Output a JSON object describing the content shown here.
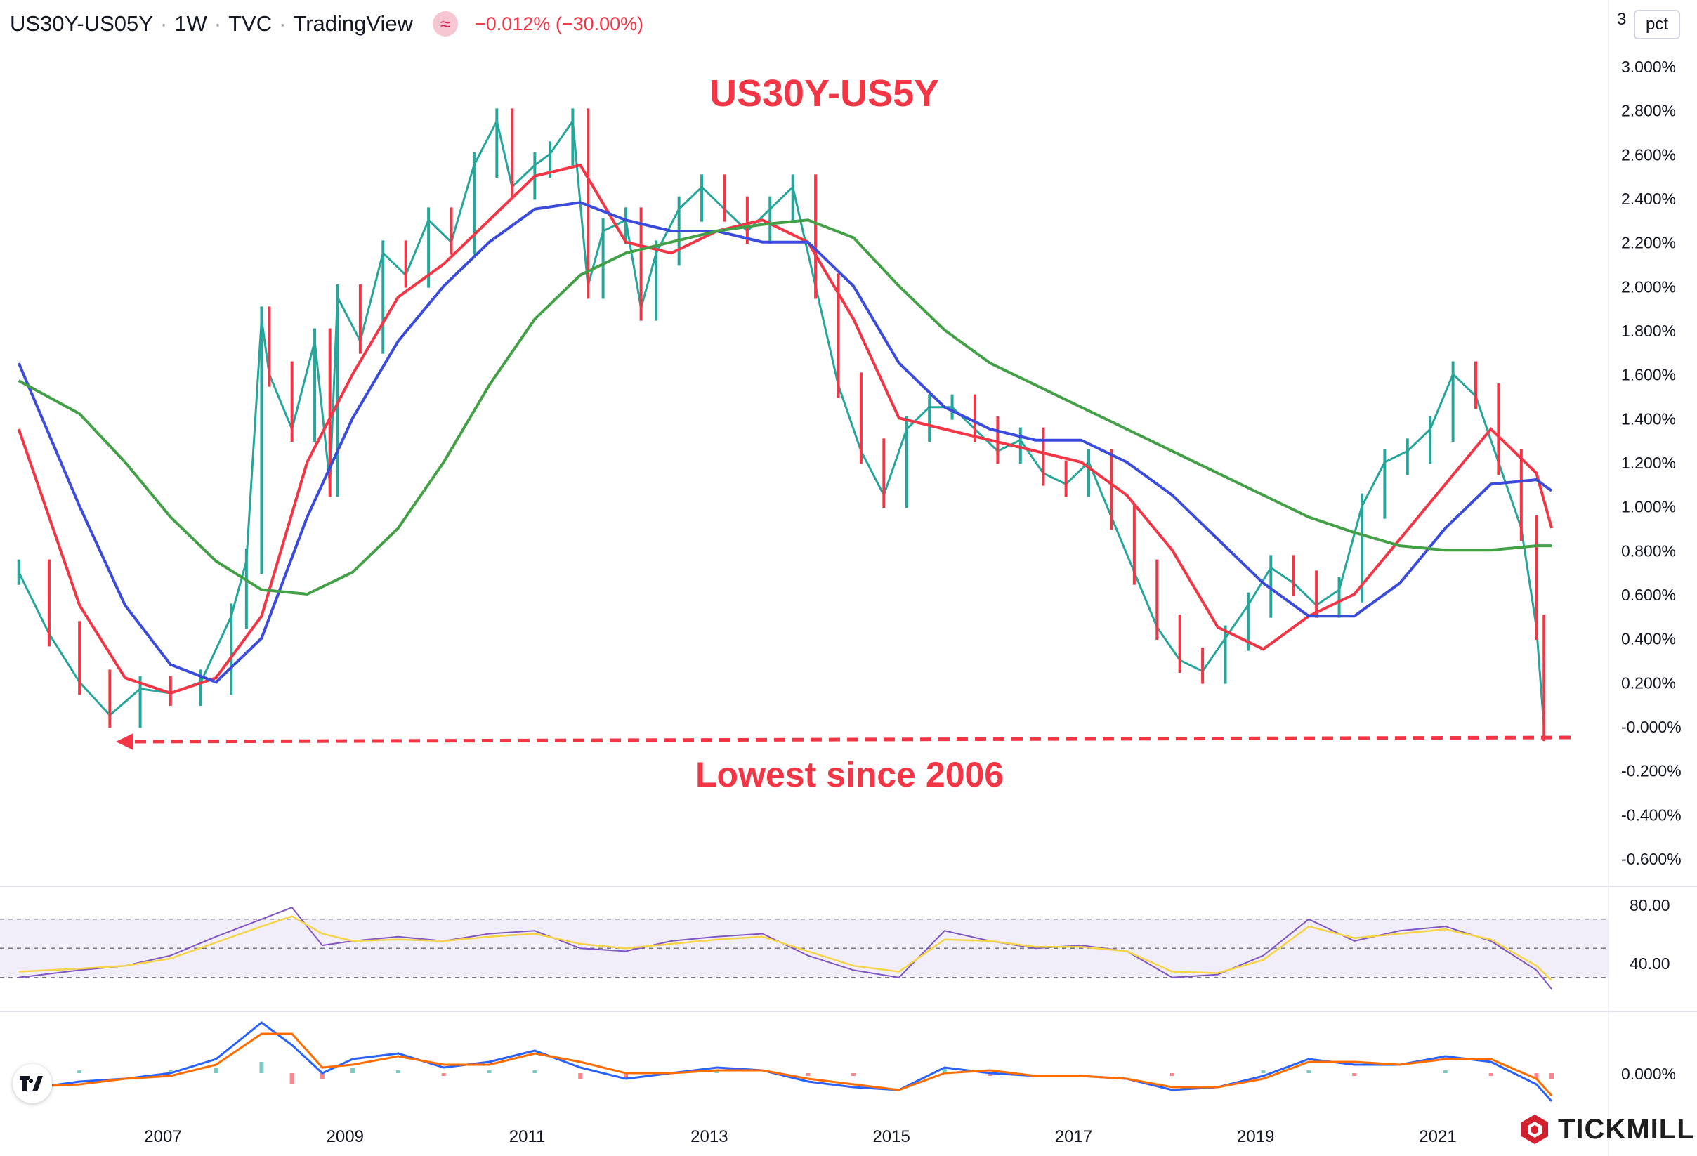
{
  "header": {
    "symbol": "US30Y-US05Y",
    "interval": "1W",
    "exchange": "TVC",
    "source": "TradingView",
    "change": "−0.012% (−30.00%)"
  },
  "price_scale": {
    "top_label": "3",
    "unit_button": "pct"
  },
  "annotations": {
    "title": "US30Y-US5Y",
    "low_note": "Lowest since 2006"
  },
  "branding": {
    "watermark": "TICKMILL"
  },
  "colors": {
    "up": "#26a69a",
    "down": "#f23645",
    "ma_fast": "#f23645",
    "ma_mid": "#3b4bdb",
    "ma_slow": "#43a047",
    "rsi": "#7e57c2",
    "rsi_ma": "#f5d547",
    "macd": "#2962ff",
    "signal": "#ff6d00"
  },
  "chart_data": [
    {
      "type": "line",
      "series_kind": "weekly candlestick (approximated by close)",
      "x": [
        "2005-06",
        "2005-10",
        "2006-02",
        "2006-06",
        "2006-10",
        "2007-02",
        "2007-06",
        "2007-10",
        "2007-12",
        "2008-02",
        "2008-03",
        "2008-06",
        "2008-09",
        "2008-11",
        "2008-12",
        "2009-03",
        "2009-06",
        "2009-09",
        "2009-12",
        "2010-03",
        "2010-06",
        "2010-09",
        "2010-11",
        "2011-02",
        "2011-04",
        "2011-07",
        "2011-09",
        "2011-11",
        "2012-02",
        "2012-04",
        "2012-06",
        "2012-09",
        "2012-12",
        "2013-03",
        "2013-06",
        "2013-09",
        "2013-12",
        "2014-03",
        "2014-06",
        "2014-09",
        "2014-12",
        "2015-03",
        "2015-06",
        "2015-09",
        "2015-12",
        "2016-03",
        "2016-06",
        "2016-09",
        "2016-12",
        "2017-03",
        "2017-06",
        "2017-09",
        "2017-12",
        "2018-03",
        "2018-06",
        "2018-09",
        "2018-12",
        "2019-03",
        "2019-06",
        "2019-09",
        "2019-12",
        "2020-03",
        "2020-06",
        "2020-09",
        "2020-12",
        "2021-03",
        "2021-06",
        "2021-09",
        "2021-12",
        "2022-02",
        "2022-03"
      ],
      "y": [
        0.7,
        0.42,
        0.2,
        0.05,
        0.17,
        0.15,
        0.2,
        0.5,
        0.75,
        1.85,
        1.6,
        1.35,
        1.75,
        1.1,
        1.95,
        1.75,
        2.15,
        2.05,
        2.3,
        2.2,
        2.55,
        2.75,
        2.45,
        2.55,
        2.6,
        2.75,
        2.0,
        2.25,
        2.3,
        1.9,
        2.15,
        2.35,
        2.45,
        2.35,
        2.25,
        2.35,
        2.45,
        2.0,
        1.55,
        1.25,
        1.05,
        1.35,
        1.45,
        1.45,
        1.35,
        1.25,
        1.3,
        1.15,
        1.1,
        1.2,
        0.95,
        0.7,
        0.45,
        0.3,
        0.25,
        0.4,
        0.55,
        0.72,
        0.65,
        0.55,
        0.62,
        1.0,
        1.2,
        1.25,
        1.35,
        1.6,
        1.5,
        1.2,
        0.9,
        0.45,
        -0.01
      ],
      "moving_averages": [
        {
          "name": "MA fast",
          "color": "#f23645",
          "x": [
            "2005-06",
            "2006-02",
            "2006-08",
            "2007-02",
            "2007-08",
            "2008-02",
            "2008-08",
            "2009-02",
            "2009-08",
            "2010-02",
            "2010-08",
            "2011-02",
            "2011-08",
            "2012-02",
            "2012-08",
            "2013-02",
            "2013-08",
            "2014-02",
            "2014-08",
            "2015-02",
            "2015-08",
            "2016-02",
            "2016-08",
            "2017-02",
            "2017-08",
            "2018-02",
            "2018-08",
            "2019-02",
            "2019-08",
            "2020-02",
            "2020-08",
            "2021-02",
            "2021-08",
            "2022-02",
            "2022-04"
          ],
          "y": [
            1.35,
            0.55,
            0.22,
            0.15,
            0.22,
            0.5,
            1.2,
            1.6,
            1.95,
            2.1,
            2.3,
            2.5,
            2.55,
            2.2,
            2.15,
            2.25,
            2.3,
            2.2,
            1.85,
            1.4,
            1.35,
            1.3,
            1.25,
            1.2,
            1.05,
            0.8,
            0.45,
            0.35,
            0.5,
            0.6,
            0.85,
            1.1,
            1.35,
            1.15,
            0.9
          ]
        },
        {
          "name": "MA mid",
          "color": "#3b4bdb",
          "x": [
            "2005-06",
            "2006-02",
            "2006-08",
            "2007-02",
            "2007-08",
            "2008-02",
            "2008-08",
            "2009-02",
            "2009-08",
            "2010-02",
            "2010-08",
            "2011-02",
            "2011-08",
            "2012-02",
            "2012-08",
            "2013-02",
            "2013-08",
            "2014-02",
            "2014-08",
            "2015-02",
            "2015-08",
            "2016-02",
            "2016-08",
            "2017-02",
            "2017-08",
            "2018-02",
            "2018-08",
            "2019-02",
            "2019-08",
            "2020-02",
            "2020-08",
            "2021-02",
            "2021-08",
            "2022-02",
            "2022-04"
          ],
          "y": [
            1.65,
            1.0,
            0.55,
            0.28,
            0.2,
            0.4,
            0.95,
            1.4,
            1.75,
            2.0,
            2.2,
            2.35,
            2.38,
            2.3,
            2.25,
            2.25,
            2.2,
            2.2,
            2.0,
            1.65,
            1.45,
            1.35,
            1.3,
            1.3,
            1.2,
            1.05,
            0.85,
            0.65,
            0.5,
            0.5,
            0.65,
            0.9,
            1.1,
            1.12,
            1.07
          ]
        },
        {
          "name": "MA slow",
          "color": "#43a047",
          "x": [
            "2005-06",
            "2006-02",
            "2006-08",
            "2007-02",
            "2007-08",
            "2008-02",
            "2008-08",
            "2009-02",
            "2009-08",
            "2010-02",
            "2010-08",
            "2011-02",
            "2011-08",
            "2012-02",
            "2012-08",
            "2013-02",
            "2013-08",
            "2014-02",
            "2014-08",
            "2015-02",
            "2015-08",
            "2016-02",
            "2016-08",
            "2017-02",
            "2017-08",
            "2018-02",
            "2018-08",
            "2019-02",
            "2019-08",
            "2020-02",
            "2020-08",
            "2021-02",
            "2021-08",
            "2022-02",
            "2022-04"
          ],
          "y": [
            1.57,
            1.42,
            1.2,
            0.95,
            0.75,
            0.62,
            0.6,
            0.7,
            0.9,
            1.2,
            1.55,
            1.85,
            2.05,
            2.15,
            2.2,
            2.25,
            2.28,
            2.3,
            2.22,
            2.0,
            1.8,
            1.65,
            1.55,
            1.45,
            1.35,
            1.25,
            1.15,
            1.05,
            0.95,
            0.88,
            0.82,
            0.8,
            0.8,
            0.82,
            0.82
          ]
        }
      ],
      "y_ticks": [
        "3.000%",
        "2.800%",
        "2.600%",
        "2.400%",
        "2.200%",
        "2.000%",
        "1.800%",
        "1.600%",
        "1.400%",
        "1.200%",
        "1.000%",
        "0.800%",
        "0.600%",
        "0.400%",
        "0.200%",
        "-0.000%",
        "-0.200%",
        "-0.400%",
        "-0.600%"
      ],
      "ylim": [
        -0.66,
        3.05
      ],
      "x_ticks": [
        "2007",
        "2009",
        "2011",
        "2013",
        "2015",
        "2017",
        "2019",
        "2021"
      ],
      "grid": false
    },
    {
      "type": "line",
      "panel": "RSI",
      "band": [
        30,
        70
      ],
      "y_ticks": [
        "80.00",
        "40.00"
      ],
      "ylim": [
        20,
        83
      ],
      "series": [
        {
          "name": "RSI",
          "color": "#7e57c2",
          "x": [
            "2005-06",
            "2006-02",
            "2006-08",
            "2007-02",
            "2007-08",
            "2008-02",
            "2008-06",
            "2008-10",
            "2009-02",
            "2009-08",
            "2010-02",
            "2010-08",
            "2011-02",
            "2011-08",
            "2012-02",
            "2012-08",
            "2013-02",
            "2013-08",
            "2014-02",
            "2014-08",
            "2015-02",
            "2015-08",
            "2016-02",
            "2016-08",
            "2017-02",
            "2017-08",
            "2018-02",
            "2018-08",
            "2019-02",
            "2019-08",
            "2020-02",
            "2020-08",
            "2021-02",
            "2021-08",
            "2022-02",
            "2022-04"
          ],
          "y": [
            30,
            35,
            38,
            45,
            58,
            70,
            78,
            52,
            55,
            58,
            55,
            60,
            62,
            50,
            48,
            55,
            58,
            60,
            45,
            35,
            30,
            62,
            55,
            50,
            52,
            48,
            30,
            32,
            45,
            70,
            55,
            62,
            65,
            55,
            35,
            22
          ]
        },
        {
          "name": "RSI MA",
          "color": "#f5d547",
          "x": [
            "2005-06",
            "2006-02",
            "2006-08",
            "2007-02",
            "2007-08",
            "2008-02",
            "2008-06",
            "2008-10",
            "2009-02",
            "2009-08",
            "2010-02",
            "2010-08",
            "2011-02",
            "2011-08",
            "2012-02",
            "2012-08",
            "2013-02",
            "2013-08",
            "2014-02",
            "2014-08",
            "2015-02",
            "2015-08",
            "2016-02",
            "2016-08",
            "2017-02",
            "2017-08",
            "2018-02",
            "2018-08",
            "2019-02",
            "2019-08",
            "2020-02",
            "2020-08",
            "2021-02",
            "2021-08",
            "2022-02",
            "2022-04"
          ],
          "y": [
            34,
            36,
            38,
            43,
            54,
            65,
            72,
            60,
            55,
            56,
            55,
            58,
            60,
            53,
            50,
            53,
            56,
            58,
            48,
            38,
            34,
            56,
            55,
            51,
            51,
            48,
            34,
            33,
            42,
            65,
            57,
            60,
            63,
            56,
            38,
            28
          ]
        }
      ]
    },
    {
      "type": "line",
      "panel": "MACD",
      "y_ticks": [
        "0.000%"
      ],
      "ylim": [
        -0.13,
        0.2
      ],
      "series": [
        {
          "name": "MACD",
          "color": "#2962ff",
          "x": [
            "2005-06",
            "2006-02",
            "2006-08",
            "2007-02",
            "2007-08",
            "2008-02",
            "2008-06",
            "2008-10",
            "2009-02",
            "2009-08",
            "2010-02",
            "2010-08",
            "2011-02",
            "2011-08",
            "2012-02",
            "2012-08",
            "2013-02",
            "2013-08",
            "2014-02",
            "2014-08",
            "2015-02",
            "2015-08",
            "2016-02",
            "2016-08",
            "2017-02",
            "2017-08",
            "2018-02",
            "2018-08",
            "2019-02",
            "2019-08",
            "2020-02",
            "2020-08",
            "2021-02",
            "2021-08",
            "2022-02",
            "2022-04"
          ],
          "y": [
            -0.06,
            -0.03,
            -0.02,
            0.0,
            0.05,
            0.18,
            0.1,
            0.0,
            0.05,
            0.07,
            0.02,
            0.04,
            0.08,
            0.02,
            -0.02,
            0.0,
            0.02,
            0.01,
            -0.03,
            -0.05,
            -0.06,
            0.02,
            0.0,
            -0.01,
            -0.01,
            -0.02,
            -0.06,
            -0.05,
            -0.01,
            0.05,
            0.03,
            0.03,
            0.06,
            0.04,
            -0.04,
            -0.1
          ]
        },
        {
          "name": "Signal",
          "color": "#ff6d00",
          "x": [
            "2005-06",
            "2006-02",
            "2006-08",
            "2007-02",
            "2007-08",
            "2008-02",
            "2008-06",
            "2008-10",
            "2009-02",
            "2009-08",
            "2010-02",
            "2010-08",
            "2011-02",
            "2011-08",
            "2012-02",
            "2012-08",
            "2013-02",
            "2013-08",
            "2014-02",
            "2014-08",
            "2015-02",
            "2015-08",
            "2016-02",
            "2016-08",
            "2017-02",
            "2017-08",
            "2018-02",
            "2018-08",
            "2019-02",
            "2019-08",
            "2020-02",
            "2020-08",
            "2021-02",
            "2021-08",
            "2022-02",
            "2022-04"
          ],
          "y": [
            -0.05,
            -0.04,
            -0.02,
            -0.01,
            0.03,
            0.14,
            0.14,
            0.02,
            0.03,
            0.06,
            0.03,
            0.03,
            0.07,
            0.04,
            0.0,
            0.0,
            0.01,
            0.01,
            -0.02,
            -0.04,
            -0.06,
            0.0,
            0.01,
            -0.01,
            -0.01,
            -0.02,
            -0.05,
            -0.05,
            -0.02,
            0.04,
            0.04,
            0.03,
            0.05,
            0.05,
            -0.02,
            -0.08
          ]
        }
      ]
    }
  ]
}
